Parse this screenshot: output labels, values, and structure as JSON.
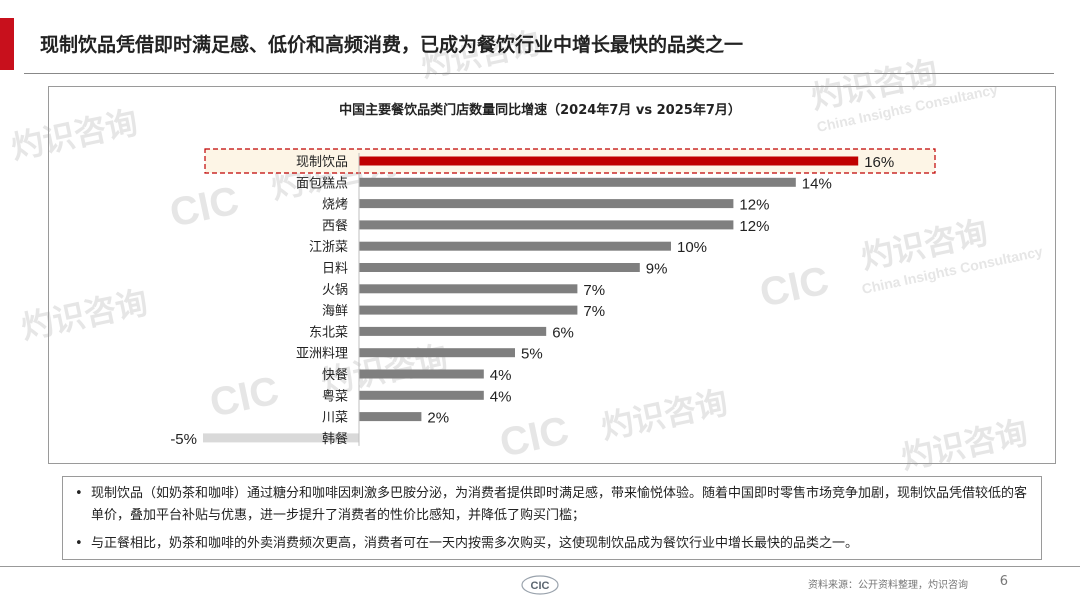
{
  "page": {
    "title": "现制饮品凭借即时满足感、低价和高频消费，已成为餐饮行业中增长最快的品类之一",
    "source": "资料来源：公开资料整理，灼识咨询",
    "page_number": "6",
    "accent_color": "#c8101c"
  },
  "watermark": {
    "logo_text": "CIC",
    "brand_cn": "灼识咨询",
    "brand_en": "China Insights Consultancy"
  },
  "chart_data": {
    "type": "bar",
    "orientation": "horizontal",
    "title": "中国主要餐饮品类门店数量同比增速（2024年7月 vs 2025年7月）",
    "categories": [
      "现制饮品",
      "面包糕点",
      "烧烤",
      "西餐",
      "江浙菜",
      "日料",
      "火锅",
      "海鲜",
      "东北菜",
      "亚洲料理",
      "快餐",
      "粤菜",
      "川菜",
      "韩餐"
    ],
    "values": [
      16,
      14,
      12,
      12,
      10,
      9,
      7,
      7,
      6,
      5,
      4,
      4,
      2,
      -5
    ],
    "value_labels": [
      "16%",
      "14%",
      "12%",
      "12%",
      "10%",
      "9%",
      "7%",
      "7%",
      "6%",
      "5%",
      "4%",
      "4%",
      "2%",
      "-5%"
    ],
    "unit": "%",
    "highlight_index": 0,
    "colors": {
      "highlight": "#c00000",
      "default": "#7f7f7f",
      "negative": "#d9d9d9",
      "highlight_box": "#fdf5e6"
    },
    "xlim": [
      -5,
      16
    ],
    "grid": false,
    "legend": "none"
  },
  "notes": [
    "现制饮品（如奶茶和咖啡）通过糖分和咖啡因刺激多巴胺分泌，为消费者提供即时满足感，带来愉悦体验。随着中国即时零售市场竞争加剧，现制饮品凭借较低的客单价，叠加平台补贴与优惠，进一步提升了消费者的性价比感知，并降低了购买门槛；",
    "与正餐相比，奶茶和咖啡的外卖消费频次更高，消费者可在一天内按需多次购买，这使现制饮品成为餐饮行业中增长最快的品类之一。"
  ]
}
